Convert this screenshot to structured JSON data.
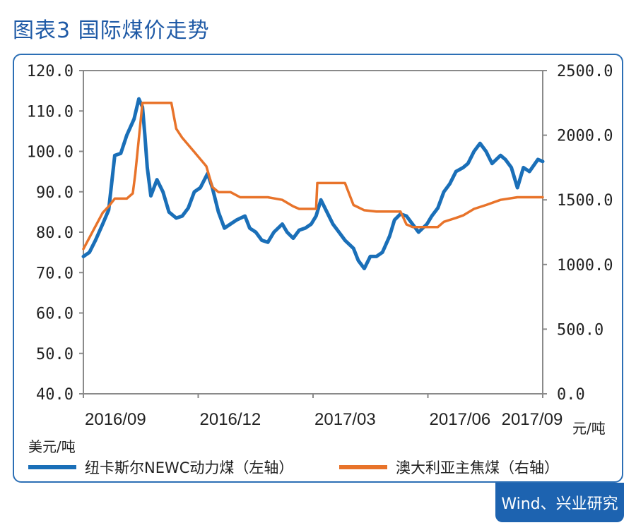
{
  "title": "图表3  国际煤价走势",
  "source": "Wind、兴业研究",
  "colors": {
    "accent": "#1f5aa6",
    "frame": "#2c6fb5",
    "series_blue": "#1a6fb8",
    "series_orange": "#e8732a"
  },
  "chart_data": {
    "type": "line",
    "title": "",
    "left_unit": "美元/吨",
    "right_unit": "元/吨",
    "x_ticks": [
      "2016/09",
      "2016/12",
      "2017/03",
      "2017/06",
      "2017/09"
    ],
    "x_range": [
      "2016-09",
      "2017-09"
    ],
    "y_left": {
      "lim": [
        40,
        120
      ],
      "ticks": [
        "120.0",
        "110.0",
        "100.0",
        "90.0",
        "80.0",
        "70.0",
        "60.0",
        "50.0",
        "40.0"
      ]
    },
    "y_right": {
      "lim": [
        0,
        2500
      ],
      "ticks": [
        "2500.0",
        "2000.0",
        "1500.0",
        "1000.0",
        "500.0",
        "0.0"
      ]
    },
    "grid": false,
    "legend_position": "bottom",
    "series": [
      {
        "name": "纽卡斯尔NEWC动力煤（左轴）",
        "axis": "left",
        "color": "#1a6fb8",
        "x": [
          "2016-08-20",
          "2016-08-25",
          "2016-08-30",
          "2016-09-05",
          "2016-09-10",
          "2016-09-15",
          "2016-09-20",
          "2016-09-25",
          "2016-10-01",
          "2016-10-05",
          "2016-10-08",
          "2016-10-10",
          "2016-10-12",
          "2016-10-15",
          "2016-10-20",
          "2016-10-25",
          "2016-10-30",
          "2016-11-05",
          "2016-11-10",
          "2016-11-15",
          "2016-11-20",
          "2016-11-25",
          "2016-12-01",
          "2016-12-05",
          "2016-12-10",
          "2016-12-15",
          "2016-12-20",
          "2016-12-25",
          "2017-01-01",
          "2017-01-05",
          "2017-01-10",
          "2017-01-15",
          "2017-01-20",
          "2017-01-25",
          "2017-02-01",
          "2017-02-05",
          "2017-02-10",
          "2017-02-15",
          "2017-02-20",
          "2017-02-25",
          "2017-03-01",
          "2017-03-05",
          "2017-03-10",
          "2017-03-15",
          "2017-03-20",
          "2017-03-25",
          "2017-04-01",
          "2017-04-05",
          "2017-04-10",
          "2017-04-15",
          "2017-04-20",
          "2017-04-25",
          "2017-05-01",
          "2017-05-05",
          "2017-05-10",
          "2017-05-15",
          "2017-05-20",
          "2017-05-25",
          "2017-06-01",
          "2017-06-05",
          "2017-06-10",
          "2017-06-15",
          "2017-06-20",
          "2017-06-25",
          "2017-07-01",
          "2017-07-05",
          "2017-07-10",
          "2017-07-15",
          "2017-07-20",
          "2017-07-25",
          "2017-08-01",
          "2017-08-05",
          "2017-08-10",
          "2017-08-15",
          "2017-08-20",
          "2017-08-25",
          "2017-09-01",
          "2017-09-05"
        ],
        "values": [
          74.0,
          75.0,
          78.0,
          82.0,
          85.5,
          99.0,
          99.5,
          104.0,
          108.0,
          113.0,
          111.0,
          104.0,
          96.0,
          89.0,
          93.0,
          90.0,
          85.0,
          83.5,
          84.0,
          86.0,
          90.0,
          91.0,
          94.5,
          91.0,
          85.0,
          81.0,
          82.0,
          83.0,
          84.0,
          81.0,
          80.0,
          78.0,
          77.5,
          80.0,
          82.0,
          80.0,
          78.5,
          80.5,
          81.0,
          82.0,
          84.0,
          88.0,
          85.0,
          82.0,
          80.0,
          78.0,
          76.0,
          73.0,
          71.0,
          74.0,
          74.0,
          75.0,
          79.0,
          83.0,
          84.5,
          84.0,
          82.0,
          80.0,
          82.0,
          84.0,
          86.0,
          90.0,
          92.0,
          95.0,
          96.0,
          97.0,
          100.0,
          102.0,
          100.0,
          97.0,
          99.0,
          98.0,
          96.0,
          91.0,
          96.0,
          95.0,
          98.0,
          97.5
        ]
      },
      {
        "name": "澳大利亚主焦煤（右轴）",
        "axis": "right",
        "color": "#e8732a",
        "x": [
          "2016-08-20",
          "2016-08-28",
          "2016-09-05",
          "2016-09-10",
          "2016-09-15",
          "2016-09-25",
          "2016-09-30",
          "2016-10-02",
          "2016-10-08",
          "2016-10-12",
          "2016-10-18",
          "2016-10-25",
          "2016-11-01",
          "2016-11-05",
          "2016-11-10",
          "2016-11-20",
          "2016-11-30",
          "2016-12-05",
          "2016-12-10",
          "2016-12-20",
          "2016-12-28",
          "2017-01-05",
          "2017-01-10",
          "2017-01-20",
          "2017-02-01",
          "2017-02-10",
          "2017-02-15",
          "2017-02-22",
          "2017-03-01",
          "2017-03-02",
          "2017-03-10",
          "2017-03-20",
          "2017-03-25",
          "2017-03-30",
          "2017-04-01",
          "2017-04-10",
          "2017-04-20",
          "2017-05-01",
          "2017-05-10",
          "2017-05-15",
          "2017-05-20",
          "2017-06-01",
          "2017-06-10",
          "2017-06-15",
          "2017-06-25",
          "2017-07-01",
          "2017-07-10",
          "2017-07-20",
          "2017-08-01",
          "2017-08-15",
          "2017-09-05"
        ],
        "values": [
          1120,
          1260,
          1400,
          1450,
          1510,
          1510,
          1550,
          1700,
          2250,
          2250,
          2250,
          2250,
          2250,
          2050,
          1980,
          1870,
          1760,
          1600,
          1560,
          1560,
          1520,
          1520,
          1520,
          1520,
          1500,
          1450,
          1430,
          1430,
          1430,
          1630,
          1630,
          1630,
          1630,
          1510,
          1460,
          1420,
          1410,
          1410,
          1410,
          1310,
          1290,
          1290,
          1290,
          1330,
          1360,
          1380,
          1430,
          1460,
          1500,
          1520,
          1520
        ]
      }
    ]
  }
}
